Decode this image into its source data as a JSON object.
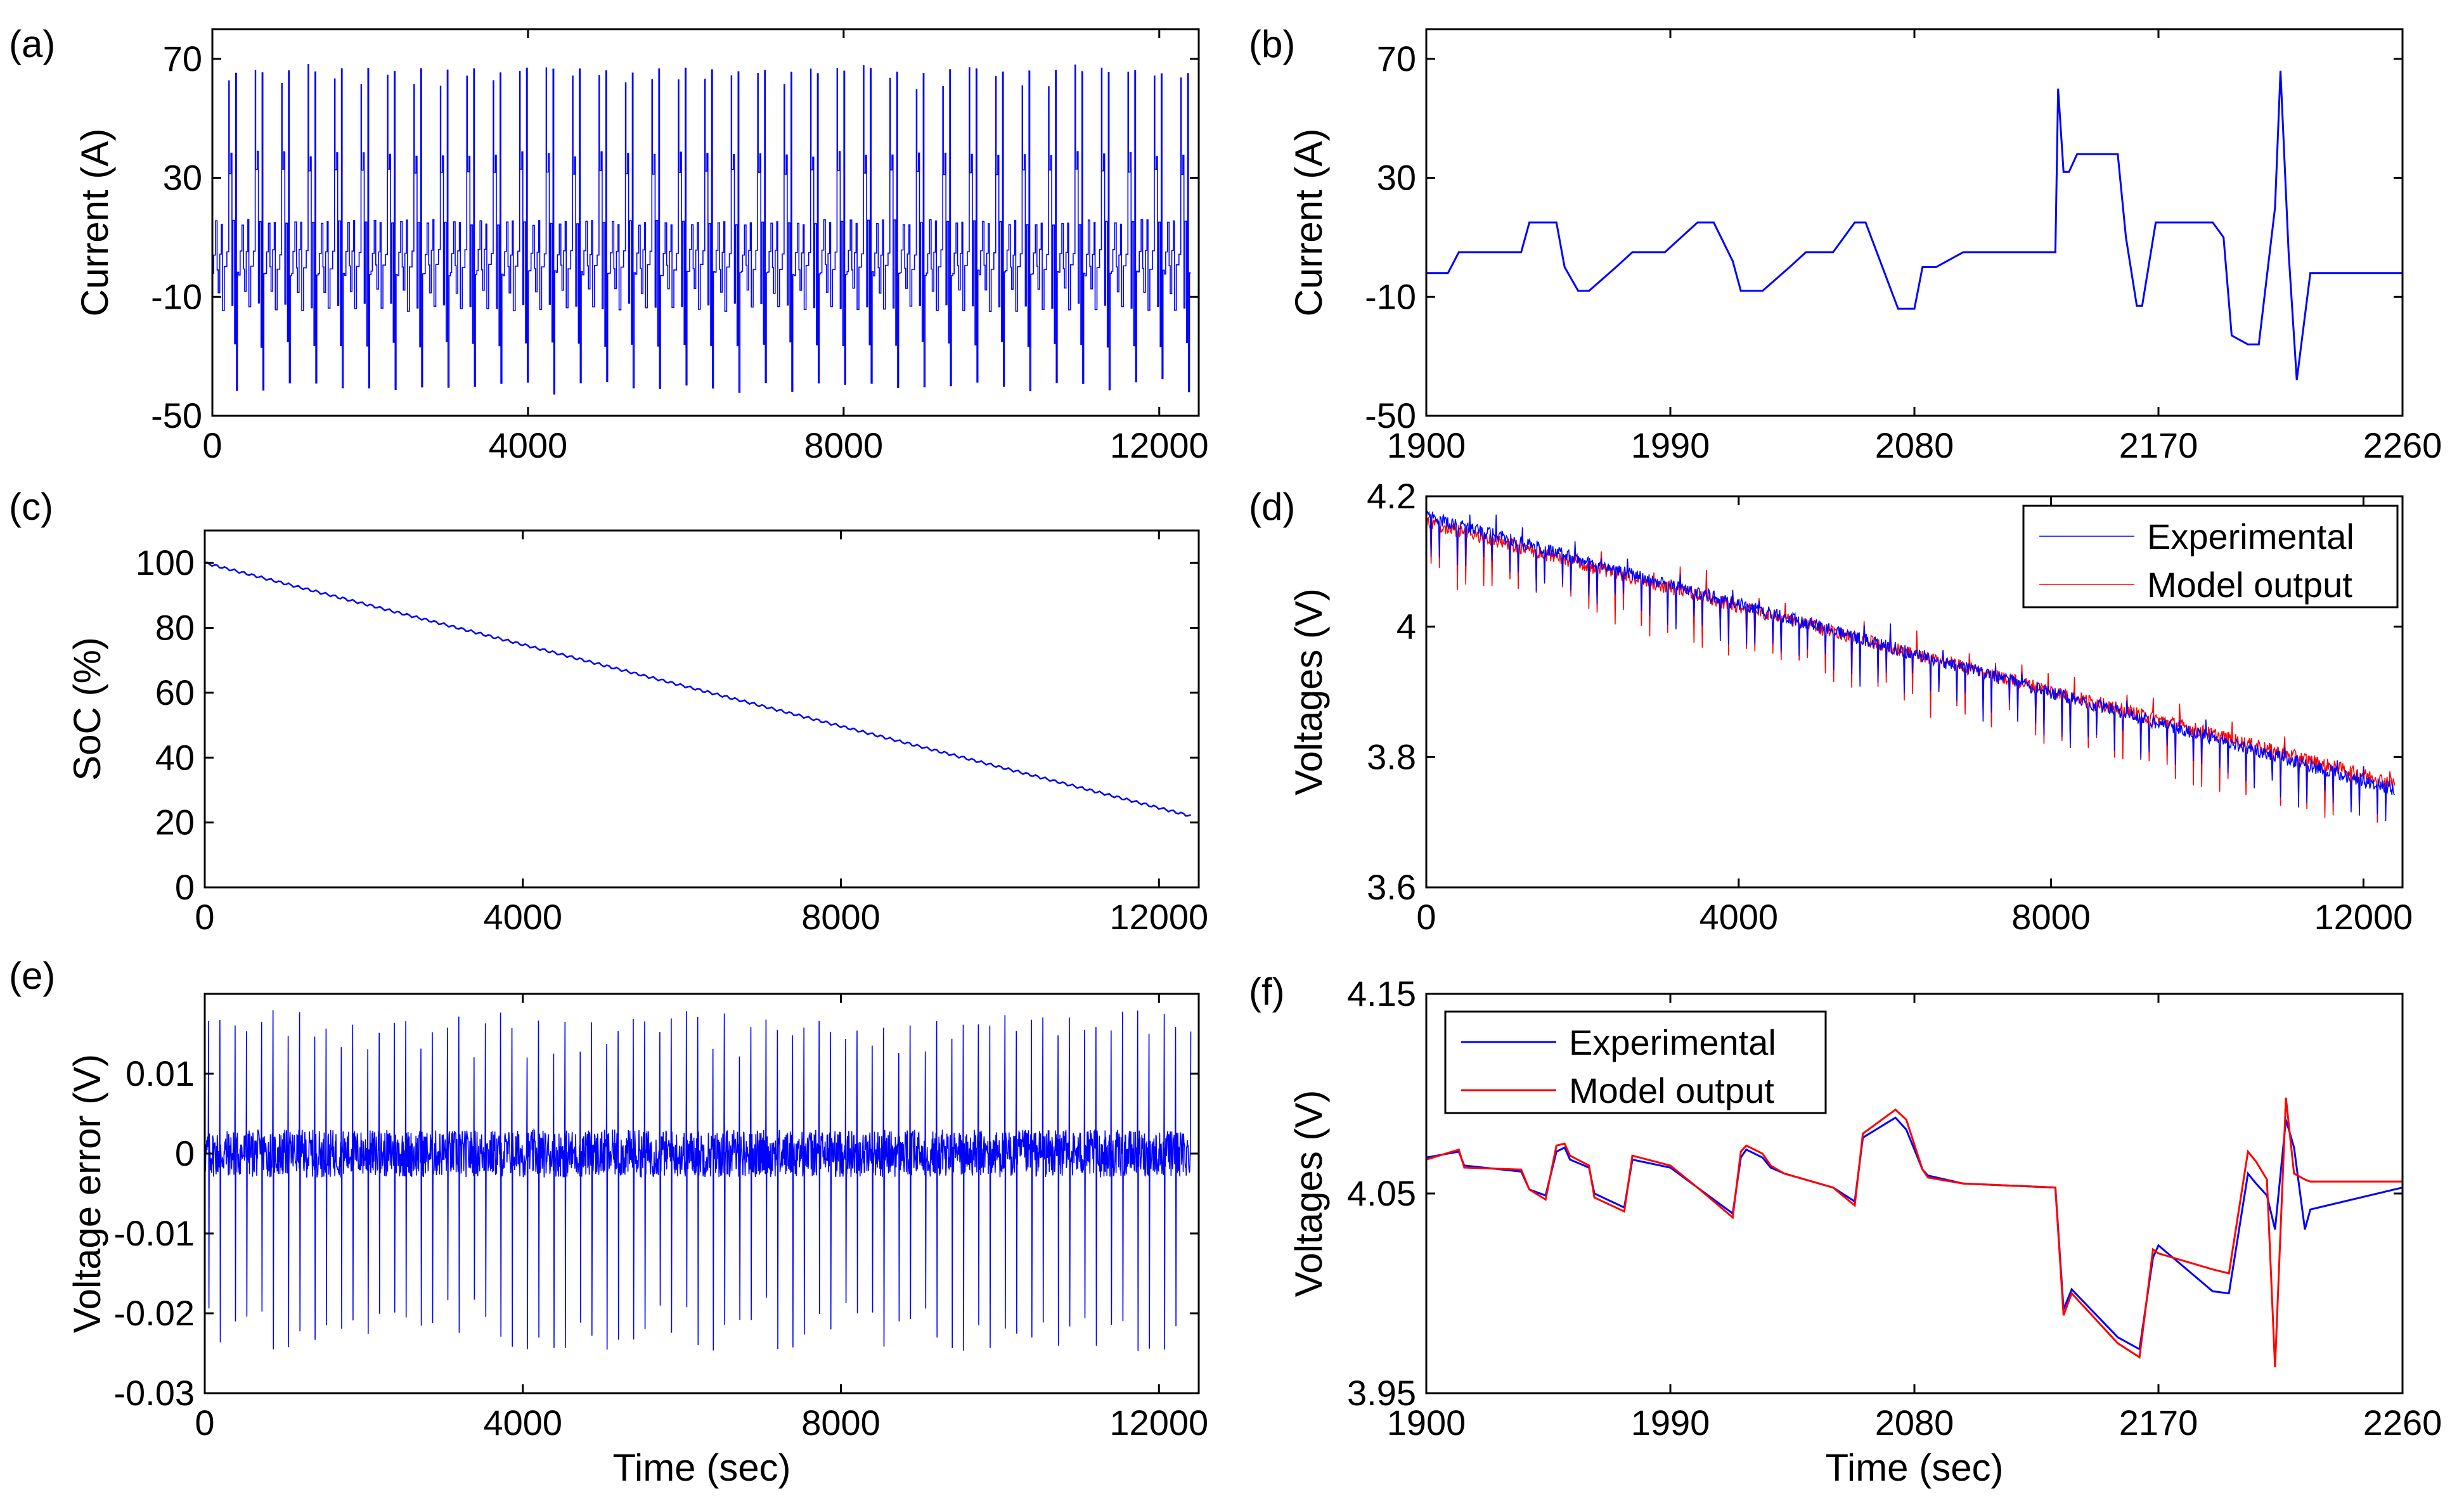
{
  "colors": {
    "experimental": "#0000ff",
    "model": "#ff0000",
    "axis": "#000000"
  },
  "legend": {
    "experimental": "Experimental",
    "model": "Model output"
  },
  "chart_data": [
    {
      "id": "a",
      "panel_label": "(a)",
      "type": "line",
      "title": "",
      "xlabel": "",
      "ylabel": "Current (A)",
      "xlim": [
        0,
        12500
      ],
      "ylim": [
        -50,
        80
      ],
      "xticks": [
        0,
        4000,
        8000,
        12000
      ],
      "xtick_labels": [
        "0",
        "4000",
        "8000",
        "12000"
      ],
      "yticks": [
        -50,
        -10,
        30,
        70
      ],
      "ytick_labels": [
        "-50",
        "-10",
        "30",
        "70"
      ],
      "legend": false,
      "series": [
        {
          "name": "Current",
          "color": "#0000ff",
          "description_values": "repeating drive-cycle current pulses",
          "range": [
            -42,
            68
          ],
          "base_level": 0,
          "cycles": 37
        }
      ]
    },
    {
      "id": "b",
      "panel_label": "(b)",
      "type": "line",
      "title": "",
      "xlabel": "",
      "ylabel": "Current (A)",
      "xlim": [
        1900,
        2260
      ],
      "ylim": [
        -50,
        80
      ],
      "xticks": [
        1900,
        1990,
        2080,
        2170,
        2260
      ],
      "xtick_labels": [
        "1900",
        "1990",
        "2080",
        "2170",
        "2260"
      ],
      "yticks": [
        -50,
        -10,
        30,
        70
      ],
      "ytick_labels": [
        "-50",
        "-10",
        "30",
        "70"
      ],
      "legend": false,
      "series": [
        {
          "name": "Current",
          "color": "#0000ff",
          "x": [
            1900,
            1908,
            1912,
            1935,
            1938,
            1948,
            1951,
            1956,
            1960,
            1970,
            1976,
            1988,
            2000,
            2006,
            2013,
            2016,
            2024,
            2034,
            2040,
            2050,
            2058,
            2062,
            2074,
            2080,
            2083,
            2088,
            2098,
            2132,
            2133,
            2135,
            2137,
            2140,
            2155,
            2158,
            2162,
            2164,
            2169,
            2190,
            2194,
            2197,
            2203,
            2207,
            2213,
            2215,
            2218,
            2221,
            2226,
            2260
          ],
          "y": [
            -2,
            -2,
            5,
            5,
            15,
            15,
            0,
            -8,
            -8,
            0,
            5,
            5,
            15,
            15,
            2,
            -8,
            -8,
            0,
            5,
            5,
            15,
            15,
            -14,
            -14,
            0,
            0,
            5,
            5,
            60,
            32,
            32,
            38,
            38,
            10,
            -13,
            -13,
            15,
            15,
            10,
            -23,
            -26,
            -26,
            20,
            66,
            5,
            -38,
            -2,
            -2
          ]
        }
      ]
    },
    {
      "id": "c",
      "panel_label": "(c)",
      "type": "line",
      "title": "",
      "xlabel": "",
      "ylabel": "SoC (%)",
      "xlim": [
        0,
        12500
      ],
      "ylim": [
        0,
        110
      ],
      "xticks": [
        0,
        4000,
        8000,
        12000
      ],
      "xtick_labels": [
        "0",
        "4000",
        "8000",
        "12000"
      ],
      "yticks": [
        0,
        20,
        40,
        60,
        80,
        100
      ],
      "ytick_labels": [
        "0",
        "20",
        "40",
        "60",
        "80",
        "100"
      ],
      "legend": false,
      "series": [
        {
          "name": "SoC",
          "color": "#0000ff",
          "x": [
            0,
            12400
          ],
          "y": [
            100,
            22
          ]
        }
      ]
    },
    {
      "id": "d",
      "panel_label": "(d)",
      "type": "line",
      "title": "",
      "xlabel": "",
      "ylabel": "Voltages (V)",
      "xlim": [
        0,
        12500
      ],
      "ylim": [
        3.6,
        4.2
      ],
      "xticks": [
        0,
        4000,
        8000,
        12000
      ],
      "xtick_labels": [
        "0",
        "4000",
        "8000",
        "12000"
      ],
      "yticks": [
        3.6,
        3.8,
        4,
        4.2
      ],
      "ytick_labels": [
        "3.6",
        "3.8",
        "4",
        "4.2"
      ],
      "legend": true,
      "legend_position": "top-right",
      "series": [
        {
          "name": "Experimental",
          "color": "#0000ff",
          "x": [
            0,
            12400
          ],
          "y": [
            4.17,
            3.75
          ]
        },
        {
          "name": "Model output",
          "color": "#ff0000",
          "x": [
            0,
            12400
          ],
          "y": [
            4.16,
            3.76
          ]
        }
      ]
    },
    {
      "id": "e",
      "panel_label": "(e)",
      "type": "line",
      "title": "",
      "xlabel": "Time (sec)",
      "ylabel": "Voltage error (V)",
      "xlim": [
        0,
        12500
      ],
      "ylim": [
        -0.03,
        0.02
      ],
      "xticks": [
        0,
        4000,
        8000,
        12000
      ],
      "xtick_labels": [
        "0",
        "4000",
        "8000",
        "12000"
      ],
      "yticks": [
        -0.03,
        -0.02,
        -0.01,
        0,
        0.01
      ],
      "ytick_labels": [
        "-0.03",
        "-0.02",
        "-0.01",
        "0",
        "0.01"
      ],
      "legend": false,
      "series": [
        {
          "name": "Voltage error",
          "color": "#0000ff",
          "range": [
            -0.025,
            0.018
          ],
          "cycles": 37
        }
      ]
    },
    {
      "id": "f",
      "panel_label": "(f)",
      "type": "line",
      "title": "",
      "xlabel": "Time (sec)",
      "ylabel": "Voltages (V)",
      "xlim": [
        1900,
        2260
      ],
      "ylim": [
        3.95,
        4.15
      ],
      "xticks": [
        1900,
        1990,
        2080,
        2170,
        2260
      ],
      "xtick_labels": [
        "1900",
        "1990",
        "2080",
        "2170",
        "2260"
      ],
      "yticks": [
        3.95,
        4.05,
        4.15
      ],
      "ytick_labels": [
        "3.95",
        "4.05",
        "4.15"
      ],
      "legend": true,
      "legend_position": "top-left",
      "series": [
        {
          "name": "Experimental",
          "color": "#0000ff",
          "x": [
            1900,
            1912,
            1914,
            1935,
            1938,
            1944,
            1948,
            1951,
            1953,
            1960,
            1962,
            1973,
            1976,
            1990,
            2000,
            2013,
            2016,
            2018,
            2024,
            2027,
            2032,
            2050,
            2058,
            2061,
            2073,
            2077,
            2083,
            2085,
            2098,
            2132,
            2135,
            2138,
            2155,
            2163,
            2168,
            2170,
            2190,
            2196,
            2203,
            2206,
            2210,
            2213,
            2217,
            2220,
            2224,
            2226,
            2260
          ],
          "y": [
            4.068,
            4.071,
            4.064,
            4.061,
            4.052,
            4.049,
            4.071,
            4.073,
            4.067,
            4.063,
            4.05,
            4.043,
            4.067,
            4.063,
            4.053,
            4.04,
            4.068,
            4.072,
            4.068,
            4.063,
            4.06,
            4.053,
            4.046,
            4.078,
            4.088,
            4.082,
            4.062,
            4.059,
            4.055,
            4.053,
            3.992,
            4.002,
            3.978,
            3.972,
            4.018,
            4.024,
            4.001,
            4.0,
            4.06,
            4.055,
            4.049,
            4.032,
            4.087,
            4.073,
            4.032,
            4.042,
            4.053
          ]
        },
        {
          "name": "Model output",
          "color": "#ff0000",
          "x": [
            1900,
            1912,
            1914,
            1935,
            1938,
            1944,
            1948,
            1951,
            1953,
            1960,
            1962,
            1973,
            1976,
            1990,
            2000,
            2013,
            2016,
            2018,
            2024,
            2027,
            2032,
            2050,
            2058,
            2061,
            2073,
            2077,
            2083,
            2085,
            2098,
            2132,
            2135,
            2138,
            2155,
            2163,
            2168,
            2170,
            2190,
            2196,
            2203,
            2206,
            2210,
            2213,
            2217,
            2220,
            2224,
            2226,
            2260
          ],
          "y": [
            4.067,
            4.072,
            4.063,
            4.062,
            4.052,
            4.047,
            4.074,
            4.075,
            4.069,
            4.064,
            4.048,
            4.041,
            4.069,
            4.064,
            4.053,
            4.038,
            4.071,
            4.074,
            4.07,
            4.064,
            4.06,
            4.053,
            4.044,
            4.08,
            4.092,
            4.087,
            4.062,
            4.058,
            4.055,
            4.053,
            3.989,
            4.0,
            3.975,
            3.968,
            4.022,
            4.02,
            4.012,
            4.01,
            4.071,
            4.066,
            4.057,
            3.963,
            4.098,
            4.06,
            4.057,
            4.056,
            4.056
          ]
        }
      ]
    }
  ]
}
